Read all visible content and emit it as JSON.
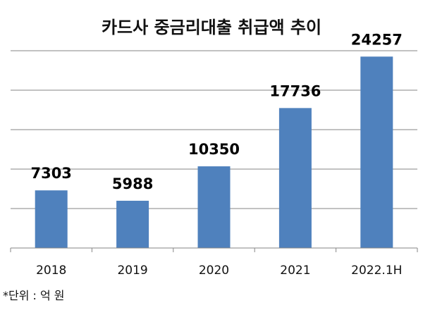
{
  "chart_data": {
    "type": "bar",
    "title": "카드사 중금리대출 취급액 추이",
    "categories": [
      "2018",
      "2019",
      "2020",
      "2021",
      "2022.1H"
    ],
    "values": [
      7303,
      5988,
      10350,
      17736,
      24257
    ],
    "data_labels": [
      "7303",
      "5988",
      "10350",
      "17736",
      "24257"
    ],
    "ylim": [
      0,
      25000
    ],
    "grid": true,
    "legend": "none",
    "bar_color": "#4f81bd",
    "grid_color": "#868686",
    "axis_color": "#868686"
  },
  "note": "*단위 : 억 원"
}
